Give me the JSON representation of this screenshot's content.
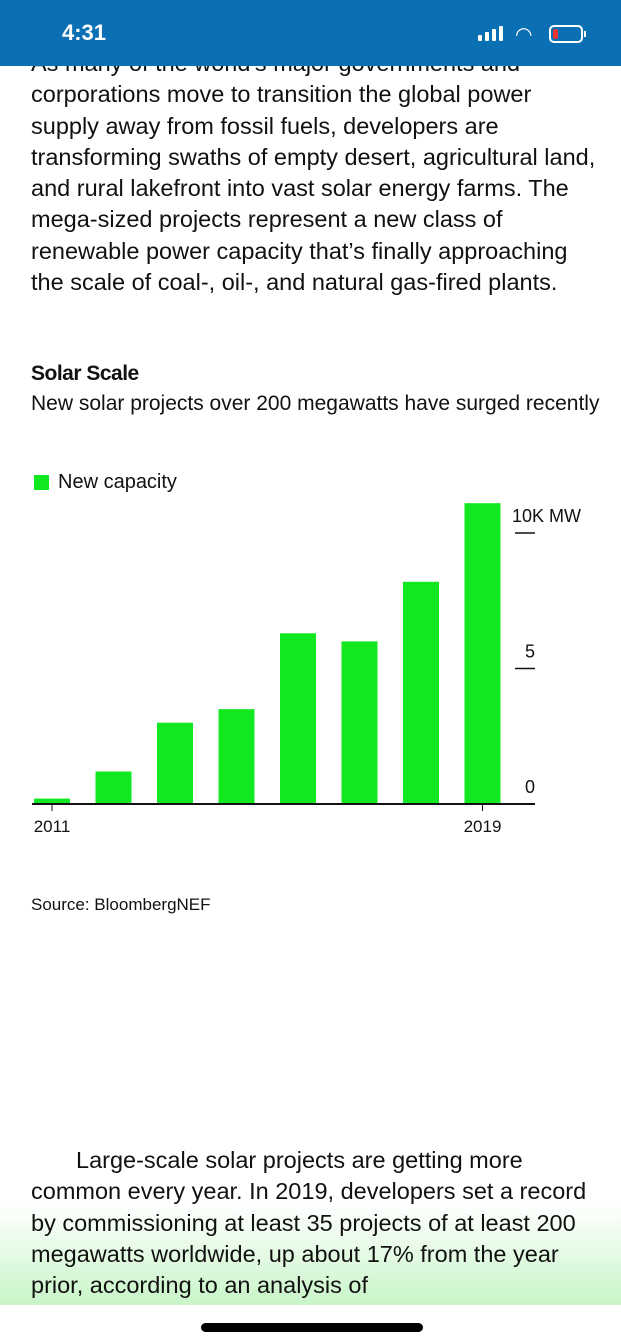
{
  "status_bar": {
    "time": "4:31",
    "battery_color": "#e33333",
    "background": "#0a6fb3"
  },
  "article": {
    "paragraph_1": "As many of the world's major governments and corporations move to transition the global power supply away from fossil fuels, developers are transforming swaths of empty desert, agricultural land, and rural lakefront into vast solar energy farms. The mega-sized projects represent a new class of renewable power capacity that’s finally approaching the scale of coal-, oil-, and natural gas-fired plants.",
    "paragraph_2": "Large-scale solar projects are getting more common every year. In 2019, developers set a record by commissioning at least 35 projects of at least 200 megawatts worldwide, up about 17% from the year prior, according to an analysis of"
  },
  "chart_data": {
    "type": "bar",
    "title": "Solar Scale",
    "subtitle": "New solar projects over 200 megawatts have surged recently",
    "legend": "New capacity",
    "color": "#12e820",
    "categories": [
      "2011",
      "",
      "",
      "",
      "",
      "",
      "",
      "2019"
    ],
    "values": [
      0.2,
      1.2,
      3.0,
      3.5,
      6.3,
      6.0,
      8.2,
      11.1
    ],
    "y_ticks": [
      "0",
      "5",
      "10K MW"
    ],
    "ylim": [
      0,
      11.1
    ],
    "source": "Source: BloombergNEF"
  }
}
